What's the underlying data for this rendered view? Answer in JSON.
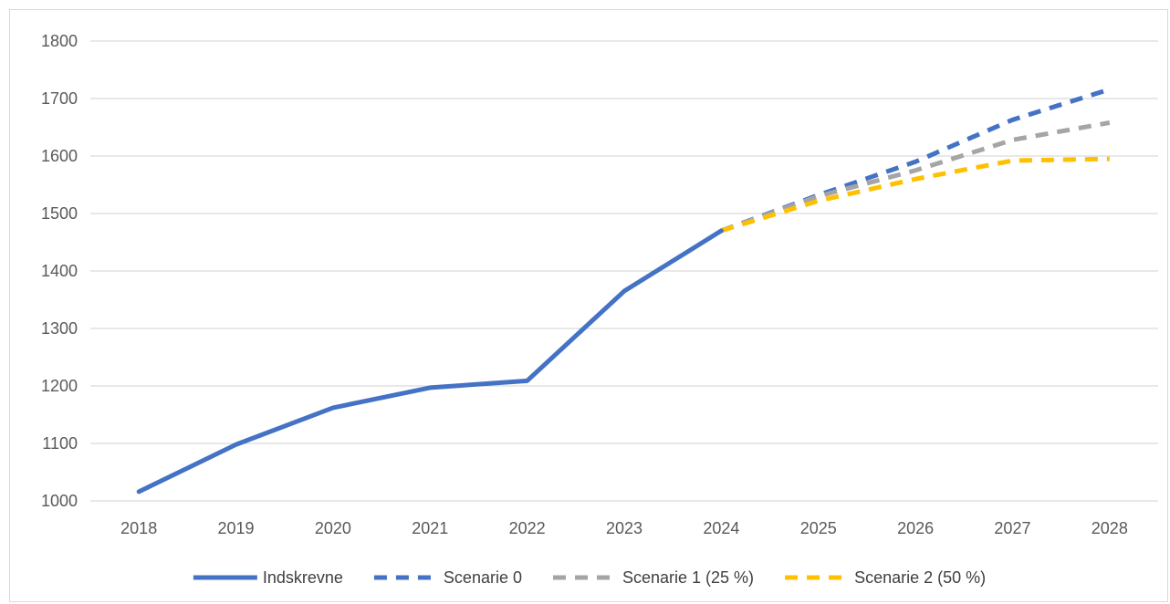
{
  "chart_data": {
    "type": "line",
    "title": "",
    "xlabel": "",
    "ylabel": "",
    "x": [
      "2018",
      "2019",
      "2020",
      "2021",
      "2022",
      "2023",
      "2024",
      "2025",
      "2026",
      "2027",
      "2028"
    ],
    "ylim": [
      1000,
      1800
    ],
    "yticks": [
      1000,
      1100,
      1200,
      1300,
      1400,
      1500,
      1600,
      1700,
      1800
    ],
    "grid": true,
    "legend_position": "bottom",
    "series": [
      {
        "name": "Indskrevne",
        "color": "#4472C4",
        "style": "solid",
        "values": [
          1016,
          1098,
          1162,
          1197,
          1209,
          1365,
          1470,
          null,
          null,
          null,
          null
        ]
      },
      {
        "name": "Scenarie 0",
        "color": "#4472C4",
        "style": "dashed",
        "values": [
          null,
          null,
          null,
          null,
          null,
          null,
          1470,
          1532,
          1590,
          1663,
          1716
        ]
      },
      {
        "name": "Scenarie 1 (25 %)",
        "color": "#A5A5A5",
        "style": "dashed",
        "values": [
          null,
          null,
          null,
          null,
          null,
          null,
          1470,
          1530,
          1575,
          1628,
          1658
        ]
      },
      {
        "name": "Scenarie 2 (50 %)",
        "color": "#FFC000",
        "style": "dashed",
        "values": [
          null,
          null,
          null,
          null,
          null,
          null,
          1470,
          1522,
          1560,
          1592,
          1595
        ]
      }
    ]
  }
}
